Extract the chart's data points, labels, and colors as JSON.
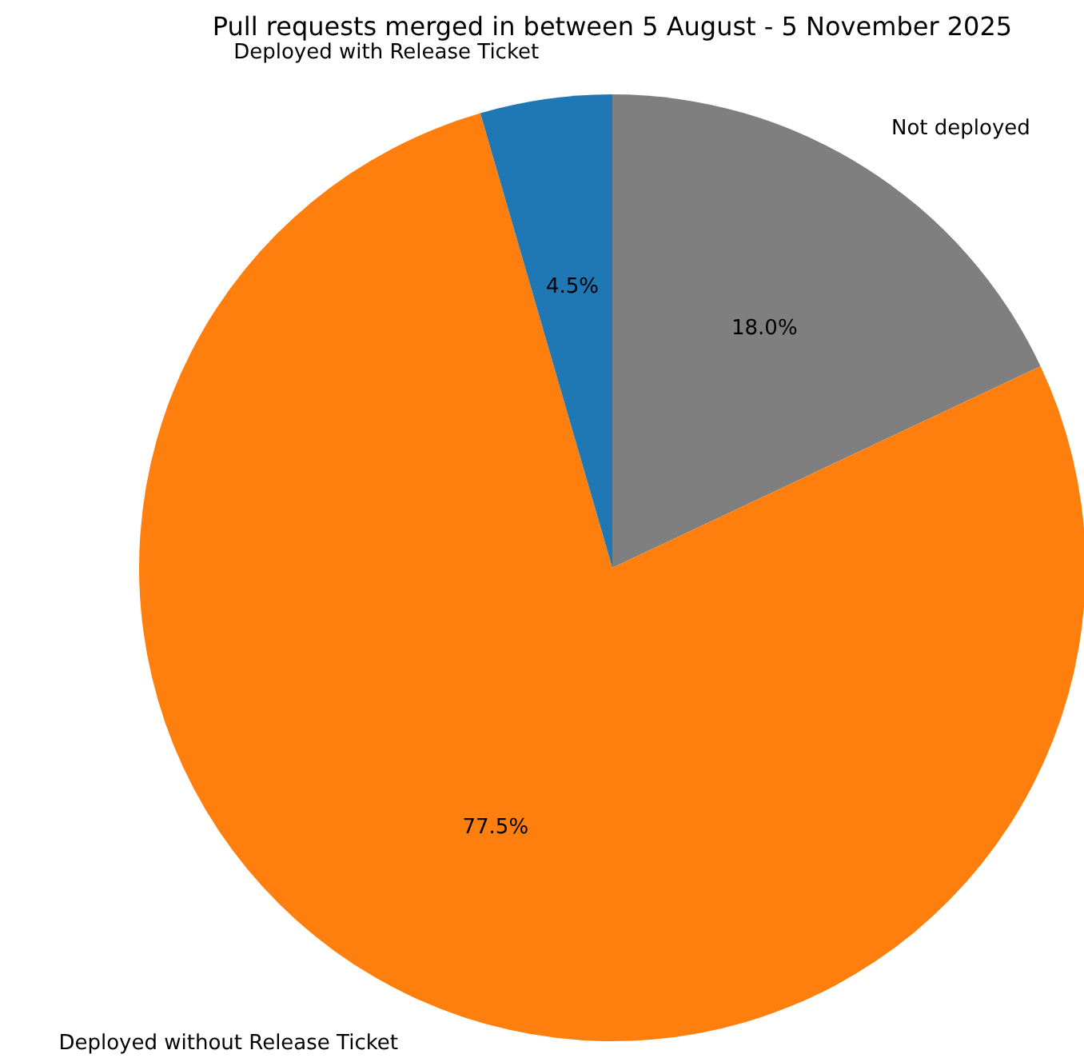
{
  "chart_data": {
    "type": "pie",
    "title": "Pull requests merged in between 5 August - 5 November 2025",
    "categories": [
      "Not deployed",
      "Deployed without Release Ticket",
      "Deployed with Release Ticket"
    ],
    "values": [
      18.0,
      77.5,
      4.5
    ],
    "colors": [
      "#7f7f7f",
      "#ff7f0e",
      "#1f77b4"
    ],
    "value_labels": [
      "18.0%",
      "77.5%",
      "4.5%"
    ]
  }
}
